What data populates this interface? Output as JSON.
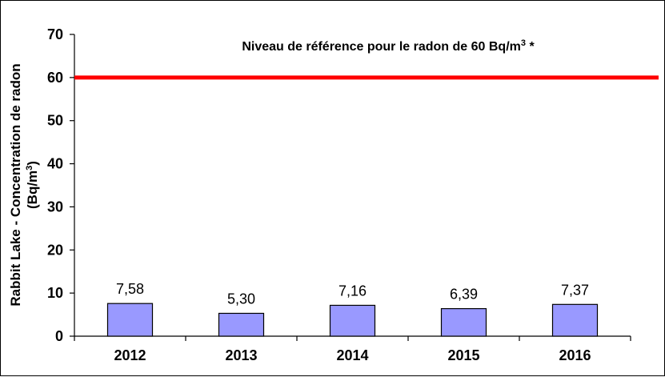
{
  "chart_data": {
    "type": "bar",
    "categories": [
      "2012",
      "2013",
      "2014",
      "2015",
      "2016"
    ],
    "values": [
      7.58,
      5.3,
      7.16,
      6.39,
      7.37
    ],
    "data_labels": [
      "7,58",
      "5,30",
      "7,16",
      "6,39",
      "7,37"
    ],
    "ylabel_line1": "Rabbit Lake - Concentration de radon",
    "ylabel_line2": "(Bq/m",
    "ylabel_sup": "3",
    "ylabel_end": ")",
    "ylim": [
      0,
      70
    ],
    "yticks": [
      0,
      10,
      20,
      30,
      40,
      50,
      60,
      70
    ],
    "reference_line": {
      "value": 60,
      "label": "Niveau de référence pour le radon de 60 Bq/m",
      "label_sup": "3",
      "label_end": " *",
      "color": "#ff0000"
    },
    "bar_color": "#9999ff",
    "bar_border_color": "#000000",
    "grid": false,
    "legend": "none"
  }
}
